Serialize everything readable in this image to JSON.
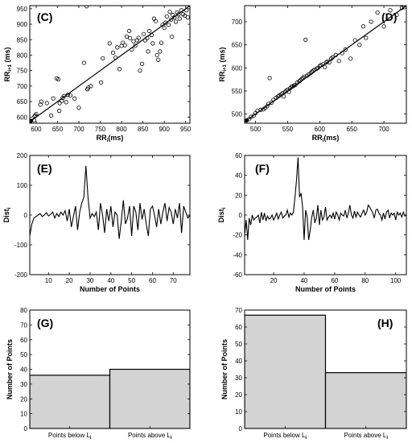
{
  "chart_data": [
    {
      "id": "C",
      "type": "scatter",
      "panel_label": "(C)",
      "xlabel": "RR",
      "xlabel_sub": "i",
      "xlabel_suffix": "(ms)",
      "ylabel": "RR",
      "ylabel_sub": "i+1",
      "ylabel_suffix": "(ms)",
      "xlim": [
        585,
        960
      ],
      "ylim": [
        580,
        960
      ],
      "xticks": [
        600,
        650,
        700,
        750,
        800,
        850,
        900,
        950
      ],
      "yticks": [
        600,
        650,
        700,
        750,
        800,
        850,
        900,
        950
      ],
      "identity_line": true,
      "points": [
        [
          588,
          588
        ],
        [
          595,
          590
        ],
        [
          596,
          602
        ],
        [
          598,
          605
        ],
        [
          600,
          610
        ],
        [
          610,
          640
        ],
        [
          612,
          650
        ],
        [
          625,
          645
        ],
        [
          635,
          605
        ],
        [
          640,
          660
        ],
        [
          648,
          725
        ],
        [
          652,
          722
        ],
        [
          654,
          620
        ],
        [
          655,
          645
        ],
        [
          660,
          652
        ],
        [
          662,
          662
        ],
        [
          666,
          668
        ],
        [
          670,
          648
        ],
        [
          674,
          672
        ],
        [
          680,
          670
        ],
        [
          690,
          660
        ],
        [
          700,
          630
        ],
        [
          712,
          775
        ],
        [
          720,
          690
        ],
        [
          722,
          695
        ],
        [
          728,
          700
        ],
        [
          752,
          712
        ],
        [
          756,
          790
        ],
        [
          772,
          838
        ],
        [
          780,
          808
        ],
        [
          786,
          792
        ],
        [
          790,
          825
        ],
        [
          795,
          755
        ],
        [
          800,
          830
        ],
        [
          803,
          840
        ],
        [
          808,
          832
        ],
        [
          812,
          860
        ],
        [
          818,
          878
        ],
        [
          820,
          855
        ],
        [
          824,
          818
        ],
        [
          828,
          845
        ],
        [
          832,
          830
        ],
        [
          836,
          848
        ],
        [
          840,
          856
        ],
        [
          843,
          750
        ],
        [
          848,
          772
        ],
        [
          852,
          868
        ],
        [
          855,
          848
        ],
        [
          860,
          855
        ],
        [
          862,
          812
        ],
        [
          865,
          878
        ],
        [
          870,
          865
        ],
        [
          873,
          838
        ],
        [
          876,
          918
        ],
        [
          880,
          910
        ],
        [
          883,
          800
        ],
        [
          886,
          785
        ],
        [
          890,
          812
        ],
        [
          893,
          840
        ],
        [
          896,
          898
        ],
        [
          900,
          888
        ],
        [
          903,
          905
        ],
        [
          906,
          925
        ],
        [
          910,
          898
        ],
        [
          913,
          940
        ],
        [
          916,
          915
        ],
        [
          918,
          860
        ],
        [
          920,
          930
        ],
        [
          924,
          922
        ],
        [
          927,
          908
        ],
        [
          930,
          938
        ],
        [
          933,
          932
        ],
        [
          936,
          918
        ],
        [
          940,
          945
        ],
        [
          944,
          932
        ],
        [
          948,
          928
        ],
        [
          952,
          945
        ],
        [
          955,
          922
        ],
        [
          718,
          958
        ]
      ]
    },
    {
      "id": "D",
      "type": "scatter",
      "panel_label": "(D)",
      "xlabel": "RR",
      "xlabel_sub": "i",
      "xlabel_suffix": "(ms)",
      "ylabel": "RR",
      "ylabel_sub": "i+1",
      "ylabel_suffix": "(ms)",
      "xlim": [
        483,
        735
      ],
      "ylim": [
        480,
        735
      ],
      "xticks": [
        500,
        550,
        600,
        650,
        700
      ],
      "yticks": [
        500,
        550,
        600,
        650,
        700
      ],
      "identity_line": true,
      "points": [
        [
          486,
          486
        ],
        [
          490,
          489
        ],
        [
          493,
          494
        ],
        [
          497,
          496
        ],
        [
          500,
          502
        ],
        [
          503,
          507
        ],
        [
          508,
          509
        ],
        [
          512,
          510
        ],
        [
          515,
          513
        ],
        [
          518,
          517
        ],
        [
          520,
          522
        ],
        [
          522,
          578
        ],
        [
          525,
          525
        ],
        [
          528,
          531
        ],
        [
          532,
          535
        ],
        [
          535,
          538
        ],
        [
          537,
          540
        ],
        [
          540,
          543
        ],
        [
          542,
          545
        ],
        [
          544,
          538
        ],
        [
          546,
          548
        ],
        [
          548,
          551
        ],
        [
          550,
          553
        ],
        [
          552,
          548
        ],
        [
          554,
          556
        ],
        [
          556,
          559
        ],
        [
          558,
          560
        ],
        [
          560,
          562
        ],
        [
          562,
          563
        ],
        [
          565,
          568
        ],
        [
          568,
          571
        ],
        [
          570,
          573
        ],
        [
          572,
          576
        ],
        [
          574,
          578
        ],
        [
          576,
          581
        ],
        [
          578,
          661
        ],
        [
          580,
          583
        ],
        [
          583,
          586
        ],
        [
          586,
          589
        ],
        [
          588,
          592
        ],
        [
          590,
          594
        ],
        [
          592,
          596
        ],
        [
          595,
          598
        ],
        [
          597,
          600
        ],
        [
          600,
          604
        ],
        [
          602,
          606
        ],
        [
          605,
          608
        ],
        [
          608,
          602
        ],
        [
          610,
          612
        ],
        [
          612,
          614
        ],
        [
          615,
          612
        ],
        [
          618,
          620
        ],
        [
          620,
          623
        ],
        [
          625,
          628
        ],
        [
          630,
          615
        ],
        [
          635,
          632
        ],
        [
          640,
          640
        ],
        [
          648,
          620
        ],
        [
          655,
          660
        ],
        [
          662,
          650
        ],
        [
          668,
          690
        ],
        [
          672,
          665
        ],
        [
          680,
          700
        ],
        [
          690,
          720
        ],
        [
          700,
          690
        ],
        [
          710,
          725
        ],
        [
          720,
          715
        ],
        [
          728,
          730
        ],
        [
          732,
          732
        ]
      ]
    },
    {
      "id": "E",
      "type": "line",
      "panel_label": "(E)",
      "xlabel": "Number of Points",
      "ylabel": "Dist",
      "ylabel_sub": "i",
      "xlim": [
        1,
        78
      ],
      "ylim": [
        -200,
        200
      ],
      "xticks": [
        10,
        20,
        30,
        40,
        50,
        60,
        70
      ],
      "yticks": [
        -200,
        -100,
        0,
        100,
        200
      ],
      "y": [
        -70,
        -30,
        -10,
        -5,
        0,
        5,
        -5,
        0,
        8,
        -3,
        2,
        10,
        -10,
        5,
        -5,
        10,
        0,
        15,
        -20,
        20,
        -40,
        -5,
        30,
        -50,
        10,
        40,
        60,
        165,
        60,
        -10,
        5,
        -5,
        10,
        -50,
        40,
        0,
        -60,
        20,
        -20,
        30,
        -40,
        10,
        0,
        -80,
        -20,
        50,
        -30,
        -10,
        30,
        -70,
        30,
        10,
        -50,
        40,
        -15,
        20,
        -30,
        -70,
        20,
        30,
        0,
        -40,
        20,
        -30,
        10,
        40,
        -20,
        25,
        10,
        -30,
        20,
        -10,
        40,
        -60,
        30,
        10,
        -10,
        0
      ]
    },
    {
      "id": "F",
      "type": "line",
      "panel_label": "(F)",
      "xlabel": "Number of Points",
      "ylabel": "Dist",
      "ylabel_sub": "i",
      "xlim": [
        1,
        107
      ],
      "ylim": [
        -60,
        60
      ],
      "xticks": [
        20,
        40,
        60,
        80,
        100
      ],
      "yticks": [
        -60,
        -40,
        -20,
        0,
        20,
        40,
        60
      ],
      "y": [
        -20,
        -5,
        -25,
        -3,
        -10,
        0,
        -5,
        -3,
        -2,
        0,
        -8,
        3,
        -5,
        2,
        -6,
        -1,
        -4,
        -3,
        0,
        -5,
        -2,
        2,
        -4,
        0,
        3,
        -3,
        -1,
        0,
        5,
        -2,
        2,
        0,
        3,
        18,
        35,
        58,
        18,
        22,
        8,
        -25,
        5,
        -2,
        -25,
        -15,
        -2,
        5,
        -8,
        -3,
        10,
        -10,
        5,
        -5,
        -2,
        8,
        -5,
        -2,
        0,
        -3,
        2,
        -4,
        3,
        0,
        -5,
        2,
        0,
        -1,
        5,
        -3,
        2,
        10,
        0,
        -3,
        4,
        -2,
        3,
        0,
        -2,
        2,
        5,
        0,
        3,
        10,
        8,
        5,
        2,
        -3,
        5,
        6,
        2,
        0,
        -5,
        2,
        -4,
        3,
        5,
        -3,
        2,
        0,
        2,
        -5,
        3,
        0,
        2,
        -2,
        3,
        -1,
        0
      ]
    },
    {
      "id": "G",
      "type": "bar",
      "panel_label": "(G)",
      "ylabel": "Number of Points",
      "categories": [
        "Points below L",
        "Points above L"
      ],
      "category_sub": "i",
      "values": [
        36,
        40
      ],
      "ylim": [
        0,
        80
      ],
      "yticks": [
        0,
        10,
        20,
        30,
        40,
        50,
        60,
        70,
        80
      ],
      "bar_color": "#d3d3d3"
    },
    {
      "id": "H",
      "type": "bar",
      "panel_label": "(H)",
      "ylabel": "Number of Points",
      "categories": [
        "Points below L",
        "Points above L"
      ],
      "category_sub": "i",
      "values": [
        67,
        33
      ],
      "ylim": [
        0,
        70
      ],
      "yticks": [
        0,
        10,
        20,
        30,
        40,
        50,
        60,
        70
      ],
      "bar_color": "#d3d3d3"
    }
  ]
}
